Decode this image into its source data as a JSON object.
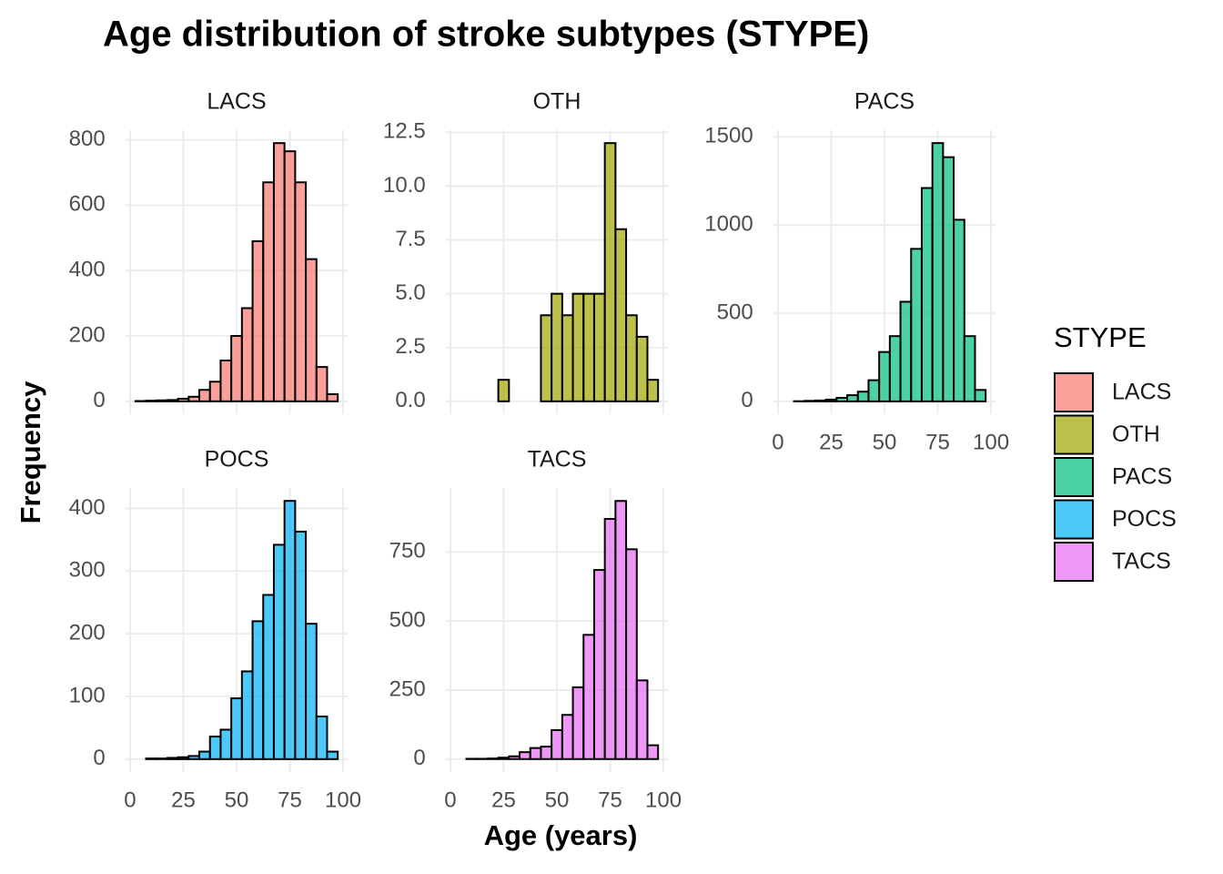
{
  "chart_data": {
    "type": "histogram",
    "title": "Age distribution of stroke subtypes (STYPE)",
    "xlabel": "Age (years)",
    "ylabel": "Frequency",
    "legend_title": "STYPE",
    "bins": [
      2.5,
      7.5,
      12.5,
      17.5,
      22.5,
      27.5,
      32.5,
      37.5,
      42.5,
      47.5,
      52.5,
      57.5,
      62.5,
      67.5,
      72.5,
      77.5,
      82.5,
      87.5,
      92.5,
      97.5
    ],
    "xlim": [
      -2.25,
      102.25
    ],
    "xticks": [
      0,
      25,
      50,
      75,
      100
    ],
    "grid": true,
    "alpha": 0.7,
    "facets": [
      {
        "name": "LACS",
        "color": "#F8766D",
        "values": [
          1,
          2,
          3,
          4,
          8,
          14,
          35,
          60,
          125,
          200,
          285,
          490,
          670,
          790,
          765,
          670,
          435,
          105,
          22
        ],
        "ylim": [
          -39.5,
          829.5
        ],
        "yticks": [
          0,
          200,
          400,
          600,
          800
        ]
      },
      {
        "name": "OTH",
        "color": "#A3A500",
        "values": [
          0,
          0,
          0,
          0,
          1,
          0,
          0,
          0,
          4,
          5,
          4,
          5,
          5,
          5,
          12,
          8,
          4,
          3,
          1
        ],
        "ylim": [
          -0.6,
          12.6
        ],
        "yticks": [
          {
            "value": 0,
            "label": "0.0"
          },
          2.5,
          {
            "value": 5,
            "label": "5.0"
          },
          7.5,
          {
            "value": 10,
            "label": "10.0"
          },
          12.5
        ]
      },
      {
        "name": "PACS",
        "color": "#00BF7D",
        "values": [
          0,
          1,
          3,
          5,
          10,
          20,
          35,
          55,
          120,
          280,
          370,
          565,
          865,
          1210,
          1465,
          1385,
          1030,
          370,
          65
        ],
        "ylim": [
          -73,
          1538
        ],
        "yticks": [
          0,
          500,
          1000,
          1500
        ]
      },
      {
        "name": "POCS",
        "color": "#00B0F6",
        "values": [
          0,
          1,
          1,
          2,
          3,
          5,
          12,
          36,
          47,
          97,
          140,
          220,
          262,
          342,
          412,
          363,
          216,
          68,
          12
        ],
        "ylim": [
          -20.6,
          432.6
        ],
        "yticks": [
          0,
          100,
          200,
          300,
          400
        ]
      },
      {
        "name": "TACS",
        "color": "#E76BF3",
        "values": [
          0,
          1,
          1,
          2,
          5,
          10,
          25,
          40,
          45,
          105,
          160,
          260,
          450,
          685,
          870,
          935,
          760,
          285,
          50
        ],
        "ylim": [
          -47,
          982
        ],
        "yticks": [
          0,
          250,
          500,
          750
        ]
      }
    ]
  }
}
